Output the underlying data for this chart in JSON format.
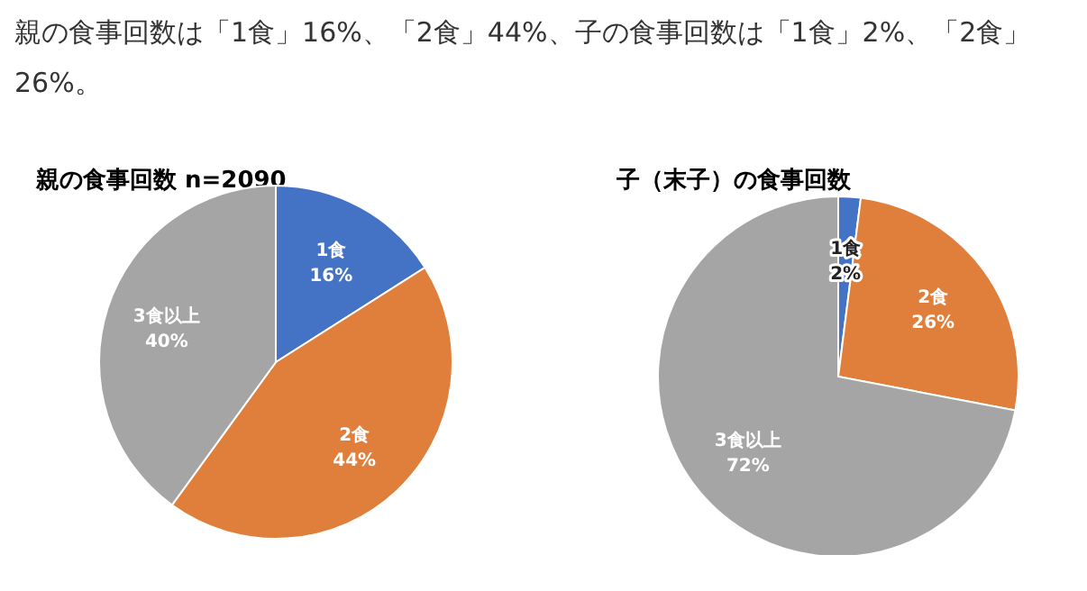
{
  "chart_data": [
    {
      "type": "other",
      "title": "親の食事回数は「1食」16%、「2食」44%、子の食事回数は「1食」2%、「2食」26%。"
    },
    {
      "type": "pie",
      "title": "親の食事回数 n=2090",
      "categories": [
        "1食",
        "2食",
        "3食以上"
      ],
      "values": [
        16,
        44,
        40
      ],
      "colors": [
        "#4472c4",
        "#e07f3c",
        "#a5a5a5"
      ],
      "value_labels": [
        "16%",
        "44%",
        "40%"
      ]
    },
    {
      "type": "pie",
      "title": "子（末子）の食事回数",
      "categories": [
        "1食",
        "2食",
        "3食以上"
      ],
      "values": [
        2,
        26,
        72
      ],
      "colors": [
        "#4472c4",
        "#e07f3c",
        "#a5a5a5"
      ],
      "value_labels": [
        "2%",
        "26%",
        "72%"
      ]
    }
  ]
}
